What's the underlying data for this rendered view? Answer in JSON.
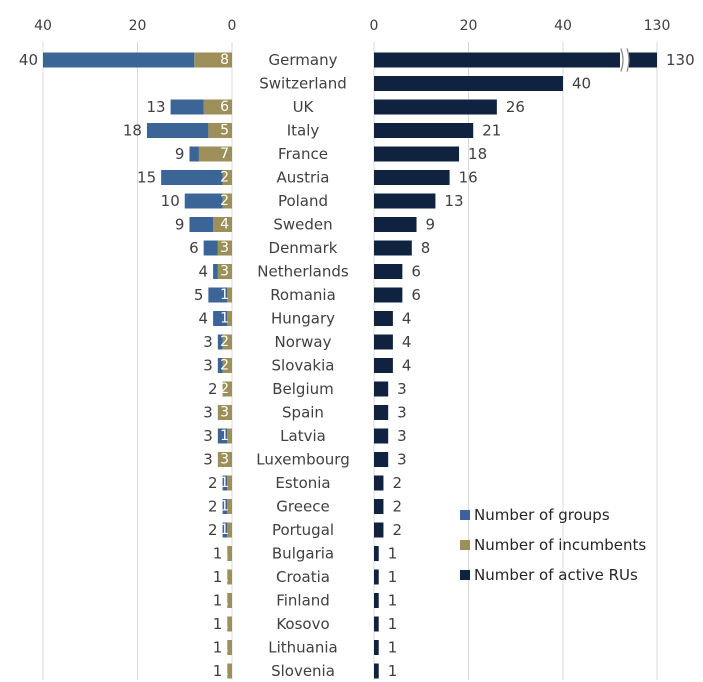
{
  "chart_data": {
    "type": "bar",
    "categories": [
      "Germany",
      "Switzerland",
      "UK",
      "Italy",
      "France",
      "Austria",
      "Poland",
      "Sweden",
      "Denmark",
      "Netherlands",
      "Romania",
      "Hungary",
      "Norway",
      "Slovakia",
      "Belgium",
      "Spain",
      "Latvia",
      "Luxembourg",
      "Estonia",
      "Greece",
      "Portugal",
      "Bulgaria",
      "Croatia",
      "Finland",
      "Kosovo",
      "Lithuania",
      "Slovenia"
    ],
    "left_panel": {
      "axis_ticks": [
        "40",
        "20",
        "0"
      ],
      "xlim": [
        0,
        40
      ],
      "totals": [
        40,
        null,
        13,
        18,
        9,
        15,
        10,
        9,
        6,
        4,
        5,
        4,
        3,
        3,
        2,
        3,
        3,
        3,
        2,
        2,
        2,
        1,
        1,
        1,
        1,
        1,
        1
      ],
      "series": [
        {
          "name": "Number of groups",
          "color": "#3c6597",
          "values": [
            32,
            0,
            7,
            13,
            2,
            13,
            8,
            5,
            3,
            1,
            4,
            3,
            1,
            1,
            0,
            0,
            2,
            0,
            1,
            1,
            1,
            0,
            0,
            0,
            0,
            0,
            0
          ]
        },
        {
          "name": "Number of incumbents",
          "color": "#9c8f5a",
          "values": [
            8,
            0,
            6,
            5,
            7,
            2,
            2,
            4,
            3,
            3,
            1,
            1,
            2,
            2,
            2,
            3,
            1,
            3,
            1,
            1,
            1,
            1,
            1,
            1,
            1,
            1,
            1
          ]
        }
      ]
    },
    "right_panel": {
      "axis_ticks": [
        "0",
        "20",
        "40",
        "130"
      ],
      "axis_break": true,
      "series": [
        {
          "name": "Number of active RUs",
          "color": "#0f2240",
          "values": [
            130,
            40,
            26,
            21,
            18,
            16,
            13,
            9,
            8,
            6,
            6,
            4,
            4,
            4,
            3,
            3,
            3,
            3,
            2,
            2,
            2,
            1,
            1,
            1,
            1,
            1,
            1
          ]
        }
      ]
    },
    "legend": [
      "Number of groups",
      "Number of incumbents",
      "Number of active RUs"
    ],
    "legend_position": "bottom-right"
  }
}
